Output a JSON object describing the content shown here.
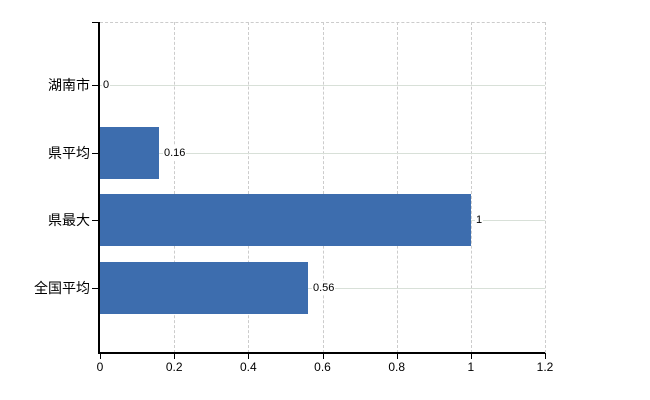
{
  "chart": {
    "bar_color": "#3d6dae",
    "axis_color": "#000000",
    "vgrid_color": "#cccccc",
    "hgrid_color": "#d8e0d8",
    "text_color": "#000000"
  },
  "chart_data": {
    "type": "bar",
    "orientation": "horizontal",
    "categories": [
      "湖南市",
      "県平均",
      "県最大",
      "全国平均"
    ],
    "values": [
      0,
      0.16,
      1,
      0.56
    ],
    "data_labels": [
      "0",
      "0.16",
      "1",
      "0.56"
    ],
    "x_ticks": [
      0,
      0.2,
      0.4,
      0.6,
      0.8,
      1,
      1.2
    ],
    "x_tick_labels": [
      "0",
      "0.2",
      "0.4",
      "0.6",
      "0.8",
      "1",
      "1.2"
    ],
    "xlim": [
      0,
      1.2
    ],
    "grid": true,
    "legend_position": "none",
    "title": "",
    "xlabel": "",
    "ylabel": ""
  }
}
